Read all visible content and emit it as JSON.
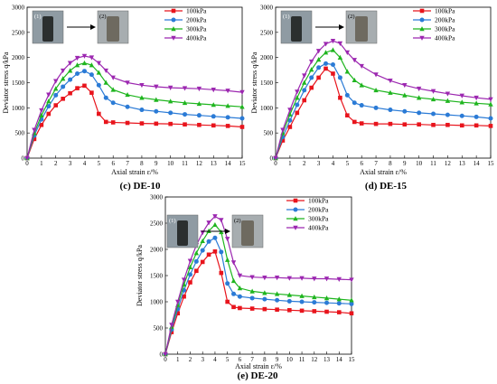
{
  "chart_data": [
    {
      "type": "line",
      "caption": "(c) DE-10",
      "inset_labels": [
        "(1)",
        "(2)"
      ],
      "xlabel": "Axial strain ε/%",
      "ylabel": "Deviator stress q/kPa",
      "xlim": [
        0,
        15
      ],
      "ylim": [
        0,
        3000
      ],
      "xticks": [
        0,
        1,
        2,
        3,
        4,
        5,
        6,
        7,
        8,
        9,
        10,
        11,
        12,
        13,
        14,
        15
      ],
      "yticks": [
        0,
        500,
        1000,
        1500,
        2000,
        2500,
        3000
      ],
      "legend_position": "top-right",
      "series": [
        {
          "name": "100kPa",
          "color": "#e8141c",
          "marker": "square",
          "x": [
            0,
            0.5,
            1,
            1.5,
            2,
            2.5,
            3,
            3.5,
            4,
            4.5,
            5,
            5.5,
            6,
            7,
            8,
            9,
            10,
            11,
            12,
            13,
            14,
            15
          ],
          "y": [
            0,
            380,
            660,
            880,
            1050,
            1180,
            1290,
            1390,
            1440,
            1300,
            880,
            720,
            710,
            700,
            690,
            685,
            680,
            670,
            660,
            650,
            640,
            620
          ]
        },
        {
          "name": "200kPa",
          "color": "#2b7bd6",
          "marker": "circle",
          "x": [
            0,
            0.5,
            1,
            1.5,
            2,
            2.5,
            3,
            3.5,
            4,
            4.5,
            5,
            5.5,
            6,
            7,
            8,
            9,
            10,
            11,
            12,
            13,
            14,
            15
          ],
          "y": [
            0,
            450,
            770,
            1030,
            1250,
            1420,
            1560,
            1680,
            1730,
            1660,
            1450,
            1200,
            1100,
            1020,
            960,
            930,
            900,
            870,
            850,
            830,
            810,
            790
          ]
        },
        {
          "name": "300kPa",
          "color": "#1fb51f",
          "marker": "triangle-up",
          "x": [
            0,
            0.5,
            1,
            1.5,
            2,
            2.5,
            3,
            3.5,
            4,
            4.5,
            5,
            5.5,
            6,
            7,
            8,
            9,
            10,
            11,
            12,
            13,
            14,
            15
          ],
          "y": [
            0,
            500,
            850,
            1130,
            1380,
            1580,
            1740,
            1850,
            1890,
            1850,
            1700,
            1500,
            1360,
            1260,
            1200,
            1160,
            1130,
            1100,
            1080,
            1060,
            1040,
            1020
          ]
        },
        {
          "name": "400kPa",
          "color": "#9c27b0",
          "marker": "triangle-down",
          "x": [
            0,
            0.5,
            1,
            1.5,
            2,
            2.5,
            3,
            3.5,
            4,
            4.5,
            5,
            5.5,
            6,
            7,
            8,
            9,
            10,
            11,
            12,
            13,
            14,
            15
          ],
          "y": [
            0,
            560,
            950,
            1260,
            1530,
            1740,
            1890,
            1990,
            2030,
            2000,
            1890,
            1740,
            1600,
            1500,
            1450,
            1420,
            1400,
            1390,
            1380,
            1360,
            1340,
            1310
          ]
        }
      ]
    },
    {
      "type": "line",
      "caption": "(d) DE-15",
      "inset_labels": [
        "(1)",
        "(2)"
      ],
      "xlabel": "Axial strain ε/%",
      "ylabel": "Deviator stress q/kPa",
      "xlim": [
        0,
        15
      ],
      "ylim": [
        0,
        3000
      ],
      "xticks": [
        0,
        1,
        2,
        3,
        4,
        5,
        6,
        7,
        8,
        9,
        10,
        11,
        12,
        13,
        14,
        15
      ],
      "yticks": [
        0,
        500,
        1000,
        1500,
        2000,
        2500,
        3000
      ],
      "legend_position": "top-right",
      "series": [
        {
          "name": "100kPa",
          "color": "#e8141c",
          "marker": "square",
          "x": [
            0,
            0.5,
            1,
            1.5,
            2,
            2.5,
            3,
            3.5,
            4,
            4.5,
            5,
            5.5,
            6,
            7,
            8,
            9,
            10,
            11,
            12,
            13,
            14,
            15
          ],
          "y": [
            0,
            350,
            620,
            900,
            1150,
            1400,
            1600,
            1780,
            1680,
            1200,
            850,
            720,
            690,
            680,
            680,
            670,
            670,
            660,
            660,
            650,
            650,
            640
          ]
        },
        {
          "name": "200kPa",
          "color": "#2b7bd6",
          "marker": "circle",
          "x": [
            0,
            0.5,
            1,
            1.5,
            2,
            2.5,
            3,
            3.5,
            4,
            4.5,
            5,
            5.5,
            6,
            7,
            8,
            9,
            10,
            11,
            12,
            13,
            14,
            15
          ],
          "y": [
            0,
            420,
            750,
            1060,
            1350,
            1600,
            1800,
            1880,
            1860,
            1600,
            1250,
            1100,
            1050,
            1000,
            960,
            930,
            900,
            880,
            860,
            840,
            820,
            790
          ]
        },
        {
          "name": "300kPa",
          "color": "#1fb51f",
          "marker": "triangle-up",
          "x": [
            0,
            0.5,
            1,
            1.5,
            2,
            2.5,
            3,
            3.5,
            4,
            4.5,
            5,
            5.5,
            6,
            7,
            8,
            9,
            10,
            11,
            12,
            13,
            14,
            15
          ],
          "y": [
            0,
            500,
            870,
            1200,
            1500,
            1760,
            1960,
            2100,
            2150,
            2000,
            1720,
            1550,
            1450,
            1350,
            1300,
            1250,
            1200,
            1170,
            1140,
            1110,
            1090,
            1070
          ]
        },
        {
          "name": "400kPa",
          "color": "#9c27b0",
          "marker": "triangle-down",
          "x": [
            0,
            0.5,
            1,
            1.5,
            2,
            2.5,
            3,
            3.5,
            4,
            4.5,
            5,
            5.5,
            6,
            7,
            8,
            9,
            10,
            11,
            12,
            13,
            14,
            15
          ],
          "y": [
            0,
            560,
            960,
            1320,
            1640,
            1920,
            2130,
            2270,
            2330,
            2280,
            2100,
            1950,
            1830,
            1660,
            1540,
            1450,
            1380,
            1330,
            1280,
            1240,
            1200,
            1170
          ]
        }
      ]
    },
    {
      "type": "line",
      "caption": "(e) DE-20",
      "inset_labels": [
        "(1)",
        "(2)"
      ],
      "xlabel": "Axial strain ε/%",
      "ylabel": "Deviator stress q/kPa",
      "xlim": [
        0,
        15
      ],
      "ylim": [
        0,
        3000
      ],
      "xticks": [
        0,
        1,
        2,
        3,
        4,
        5,
        6,
        7,
        8,
        9,
        10,
        11,
        12,
        13,
        14,
        15
      ],
      "yticks": [
        0,
        500,
        1000,
        1500,
        2000,
        2500,
        3000
      ],
      "legend_position": "top-right",
      "series": [
        {
          "name": "100kPa",
          "color": "#e8141c",
          "marker": "square",
          "x": [
            0,
            0.5,
            1,
            1.5,
            2,
            2.5,
            3,
            3.5,
            4,
            4.5,
            5,
            5.5,
            6,
            7,
            8,
            9,
            10,
            11,
            12,
            13,
            14,
            15
          ],
          "y": [
            0,
            420,
            780,
            1100,
            1370,
            1590,
            1760,
            1900,
            1960,
            1550,
            1000,
            900,
            880,
            870,
            860,
            850,
            840,
            830,
            820,
            810,
            800,
            780
          ]
        },
        {
          "name": "200kPa",
          "color": "#2b7bd6",
          "marker": "circle",
          "x": [
            0,
            0.5,
            1,
            1.5,
            2,
            2.5,
            3,
            3.5,
            4,
            4.5,
            5,
            5.5,
            6,
            7,
            8,
            9,
            10,
            11,
            12,
            13,
            14,
            15
          ],
          "y": [
            0,
            470,
            860,
            1220,
            1520,
            1770,
            1980,
            2150,
            2220,
            1950,
            1350,
            1150,
            1100,
            1070,
            1050,
            1030,
            1010,
            1000,
            990,
            980,
            970,
            960
          ]
        },
        {
          "name": "300kPa",
          "color": "#1fb51f",
          "marker": "triangle-up",
          "x": [
            0,
            0.5,
            1,
            1.5,
            2,
            2.5,
            3,
            3.5,
            4,
            4.5,
            5,
            5.5,
            6,
            7,
            8,
            9,
            10,
            11,
            12,
            13,
            14,
            15
          ],
          "y": [
            0,
            520,
            940,
            1330,
            1660,
            1930,
            2160,
            2350,
            2470,
            2330,
            1800,
            1400,
            1260,
            1200,
            1170,
            1150,
            1130,
            1110,
            1090,
            1070,
            1050,
            1030
          ]
        },
        {
          "name": "400kPa",
          "color": "#9c27b0",
          "marker": "triangle-down",
          "x": [
            0,
            0.5,
            1,
            1.5,
            2,
            2.5,
            3,
            3.5,
            4,
            4.5,
            5,
            5.5,
            6,
            7,
            8,
            9,
            10,
            11,
            12,
            13,
            14,
            15
          ],
          "y": [
            0,
            560,
            1000,
            1420,
            1780,
            2080,
            2320,
            2510,
            2630,
            2560,
            2200,
            1750,
            1500,
            1470,
            1460,
            1460,
            1450,
            1450,
            1440,
            1440,
            1430,
            1420
          ]
        }
      ]
    }
  ]
}
